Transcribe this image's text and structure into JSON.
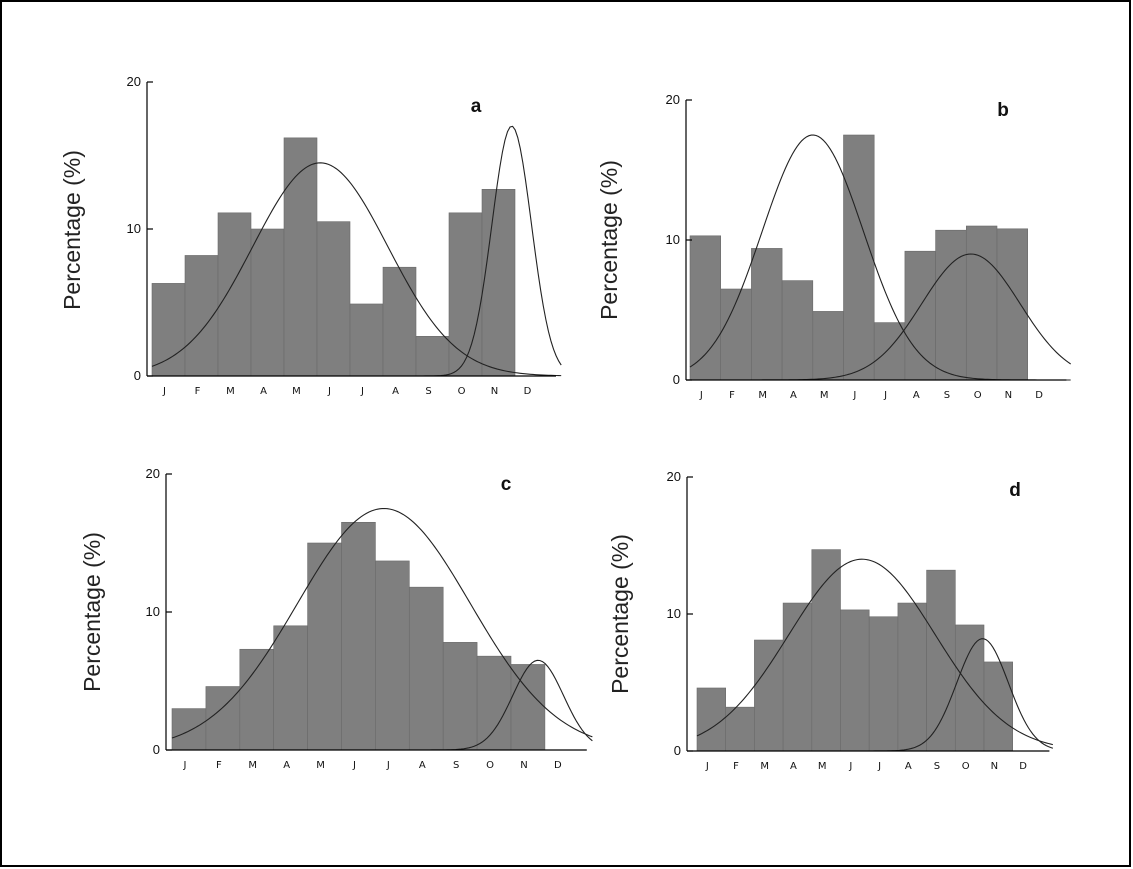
{
  "colors": {
    "bar": "#7f7f7f",
    "bar_edge": "#6a6a6a",
    "curve": "#222222",
    "axis": "#000000",
    "frame": "#000000"
  },
  "chart_data": [
    {
      "type": "bar",
      "panel_label": "a",
      "title": "",
      "xlabel": "",
      "ylabel": "Percentage (%)",
      "ylim": [
        0,
        20
      ],
      "yticks": [
        "0",
        "10",
        "20"
      ],
      "categories": [
        "J",
        "F",
        "M",
        "A",
        "M",
        "J",
        "J",
        "A",
        "S",
        "O",
        "N",
        "D"
      ],
      "values": [
        6.3,
        8.2,
        11.1,
        10.0,
        16.2,
        10.5,
        4.9,
        7.4,
        2.7,
        11.1,
        12.7,
        0
      ],
      "fitted_curves": [
        {
          "mean": 5.1,
          "sd": 2.05,
          "peak": 14.5
        },
        {
          "mean": 10.9,
          "sd": 0.6,
          "peak": 17.0
        }
      ],
      "grid": false
    },
    {
      "type": "bar",
      "panel_label": "b",
      "title": "",
      "xlabel": "",
      "ylabel": "Percentage (%)",
      "ylim": [
        0,
        20
      ],
      "yticks": [
        "0",
        "10",
        "20"
      ],
      "categories": [
        "J",
        "F",
        "M",
        "A",
        "M",
        "J",
        "J",
        "A",
        "S",
        "O",
        "N",
        "D"
      ],
      "values": [
        10.3,
        6.5,
        9.4,
        7.1,
        4.9,
        17.5,
        4.1,
        9.2,
        10.7,
        11.0,
        10.8,
        0
      ],
      "fitted_curves": [
        {
          "mean": 4.0,
          "sd": 1.65,
          "peak": 17.5
        },
        {
          "mean": 9.15,
          "sd": 1.6,
          "peak": 9.0
        }
      ],
      "grid": false
    },
    {
      "type": "bar",
      "panel_label": "c",
      "title": "",
      "xlabel": "",
      "ylabel": "Percentage (%)",
      "ylim": [
        0,
        20
      ],
      "yticks": [
        "0",
        "10",
        "20"
      ],
      "categories": [
        "J",
        "F",
        "M",
        "A",
        "M",
        "J",
        "J",
        "A",
        "S",
        "O",
        "N",
        "D"
      ],
      "values": [
        3.0,
        4.6,
        7.3,
        9.0,
        15.0,
        16.5,
        13.7,
        11.8,
        7.8,
        6.8,
        6.2,
        0
      ],
      "fitted_curves": [
        {
          "mean": 6.25,
          "sd": 2.55,
          "peak": 17.5
        },
        {
          "mean": 10.8,
          "sd": 0.75,
          "peak": 6.5
        }
      ],
      "grid": false
    },
    {
      "type": "bar",
      "panel_label": "d",
      "title": "",
      "xlabel": "",
      "ylabel": "Percentage (%)",
      "ylim": [
        0,
        20
      ],
      "yticks": [
        "0",
        "10",
        "20"
      ],
      "categories": [
        "J",
        "F",
        "M",
        "A",
        "M",
        "J",
        "J",
        "A",
        "S",
        "O",
        "N",
        "D"
      ],
      "values": [
        4.6,
        3.2,
        8.1,
        10.8,
        14.7,
        10.3,
        9.8,
        10.8,
        13.2,
        9.2,
        6.5,
        0
      ],
      "fitted_curves": [
        {
          "mean": 5.75,
          "sd": 2.55,
          "peak": 14.0
        },
        {
          "mean": 9.95,
          "sd": 0.9,
          "peak": 8.2
        }
      ],
      "grid": false
    }
  ]
}
